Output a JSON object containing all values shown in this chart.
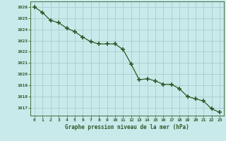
{
  "x": [
    0,
    1,
    2,
    3,
    4,
    5,
    6,
    7,
    8,
    9,
    10,
    11,
    12,
    13,
    14,
    15,
    16,
    17,
    18,
    19,
    20,
    21,
    22,
    23
  ],
  "y": [
    1026.0,
    1025.5,
    1024.8,
    1024.6,
    1024.1,
    1023.8,
    1023.3,
    1022.9,
    1022.7,
    1022.7,
    1022.7,
    1022.2,
    1020.9,
    1019.5,
    1019.6,
    1019.4,
    1019.1,
    1019.1,
    1018.7,
    1018.0,
    1017.8,
    1017.6,
    1016.9,
    1016.6
  ],
  "line_color": "#2d5a27",
  "marker_color": "#2d5a27",
  "bg_color": "#c8eaea",
  "grid_color": "#a8cccc",
  "xlabel": "Graphe pression niveau de la mer (hPa)",
  "xlabel_color": "#2d5a27",
  "tick_color": "#2d5a27",
  "ylim": [
    1016.3,
    1026.5
  ],
  "yticks": [
    1017,
    1018,
    1019,
    1020,
    1021,
    1022,
    1023,
    1024,
    1025,
    1026
  ],
  "xlim": [
    -0.5,
    23.5
  ],
  "xticks": [
    0,
    1,
    2,
    3,
    4,
    5,
    6,
    7,
    8,
    9,
    10,
    11,
    12,
    13,
    14,
    15,
    16,
    17,
    18,
    19,
    20,
    21,
    22,
    23
  ]
}
